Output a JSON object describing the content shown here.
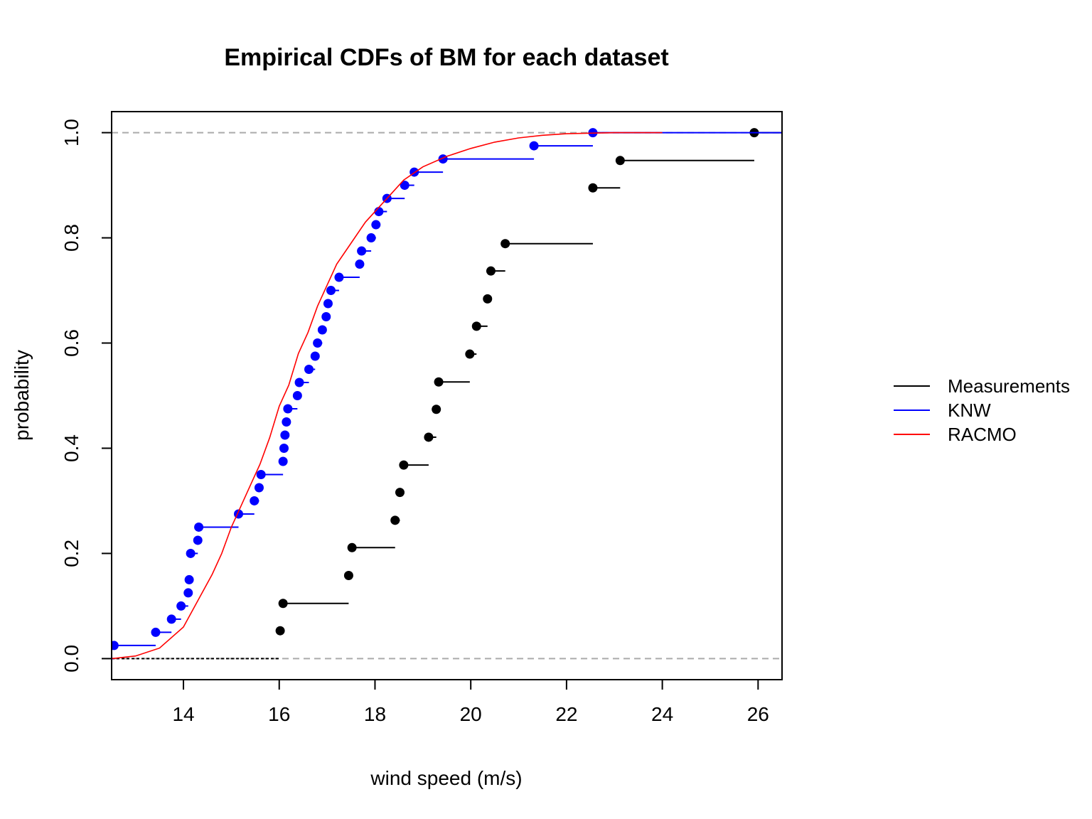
{
  "chart_data": {
    "type": "line",
    "title": "Empirical CDFs of BM for each dataset",
    "xlabel": "wind speed (m/s)",
    "ylabel": "probability",
    "xlim": [
      12.5,
      26.5
    ],
    "ylim": [
      -0.04,
      1.04
    ],
    "x_ticks": [
      14,
      16,
      18,
      20,
      22,
      24,
      26
    ],
    "y_ticks": [
      0.0,
      0.2,
      0.4,
      0.6,
      0.8,
      1.0
    ],
    "x_tick_labels": [
      "14",
      "16",
      "18",
      "20",
      "22",
      "24",
      "26"
    ],
    "y_tick_labels": [
      "0.0",
      "0.2",
      "0.4",
      "0.6",
      "0.8",
      "1.0"
    ],
    "reference_lines": [
      0,
      1
    ],
    "legend_position": "right",
    "series": [
      {
        "name": "Measurements",
        "color": "#000000",
        "style": "step-points",
        "x": [
          16.02,
          16.08,
          17.45,
          17.52,
          18.42,
          18.52,
          18.6,
          19.12,
          19.28,
          19.33,
          19.98,
          20.12,
          20.35,
          20.42,
          20.72,
          22.55,
          23.12,
          25.92
        ],
        "y": [
          0.053,
          0.105,
          0.158,
          0.211,
          0.263,
          0.316,
          0.368,
          0.421,
          0.474,
          0.526,
          0.579,
          0.632,
          0.684,
          0.737,
          0.789,
          0.895,
          0.947,
          1.0
        ]
      },
      {
        "name": "KNW",
        "color": "#0000ff",
        "style": "step-points",
        "x": [
          12.55,
          13.42,
          13.75,
          13.95,
          14.1,
          14.12,
          14.15,
          14.3,
          14.32,
          15.15,
          15.48,
          15.58,
          15.62,
          16.08,
          16.1,
          16.12,
          16.15,
          16.18,
          16.38,
          16.42,
          16.62,
          16.75,
          16.8,
          16.9,
          16.98,
          17.02,
          17.08,
          17.25,
          17.68,
          17.72,
          17.92,
          18.02,
          18.08,
          18.25,
          18.62,
          18.82,
          19.42,
          21.32,
          22.55
        ],
        "y": [
          0.025,
          0.05,
          0.075,
          0.1,
          0.125,
          0.15,
          0.2,
          0.225,
          0.25,
          0.275,
          0.3,
          0.325,
          0.35,
          0.375,
          0.4,
          0.425,
          0.45,
          0.475,
          0.5,
          0.525,
          0.55,
          0.575,
          0.6,
          0.625,
          0.65,
          0.675,
          0.7,
          0.725,
          0.75,
          0.775,
          0.8,
          0.825,
          0.85,
          0.875,
          0.9,
          0.925,
          0.95,
          0.975,
          1.0
        ]
      },
      {
        "name": "RACMO",
        "color": "#ff0000",
        "style": "line",
        "x": [
          12.5,
          13.0,
          13.5,
          14.0,
          14.3,
          14.6,
          14.8,
          15.0,
          15.2,
          15.4,
          15.6,
          15.8,
          16.0,
          16.2,
          16.4,
          16.6,
          16.8,
          17.0,
          17.2,
          17.5,
          17.8,
          18.0,
          18.3,
          18.6,
          19.0,
          19.5,
          20.0,
          20.5,
          21.0,
          21.5,
          22.0,
          22.5,
          23.0,
          23.5,
          24.0
        ],
        "y": [
          0.0,
          0.005,
          0.02,
          0.06,
          0.11,
          0.16,
          0.2,
          0.25,
          0.29,
          0.33,
          0.37,
          0.42,
          0.48,
          0.52,
          0.58,
          0.62,
          0.67,
          0.71,
          0.75,
          0.79,
          0.83,
          0.85,
          0.88,
          0.91,
          0.935,
          0.955,
          0.97,
          0.982,
          0.99,
          0.995,
          0.998,
          0.999,
          1.0,
          1.0,
          1.0
        ]
      }
    ]
  }
}
